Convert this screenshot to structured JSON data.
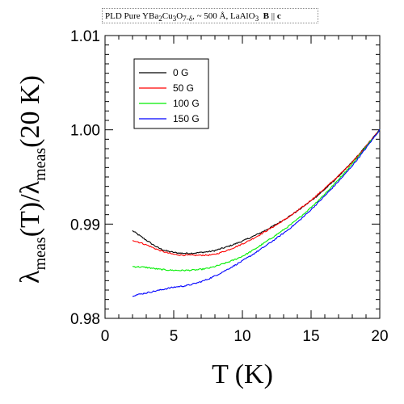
{
  "chart_data": {
    "type": "line",
    "title": "PLD Pure YBa2Cu3O7-δ,  ~ 500 Å,  LaAlO3  B || c",
    "title_parts": {
      "prefix": "PLD Pure YBa",
      "sub1": "2",
      "mid1": "Cu",
      "sub2": "3",
      "mid2": "O",
      "sub3": "7-δ",
      "mid3": ",  ~ 500 Å,  LaAlO",
      "sub4": "3",
      "field": "B",
      "parallel": "||",
      "axis": "c"
    },
    "xlabel": "T (K)",
    "ylabel": {
      "lambda1": "λ",
      "sub1": "meas",
      "mid": "(T)/",
      "lambda2": "λ",
      "sub2": "meas",
      "tail": "(20 K)"
    },
    "xlim": [
      0,
      20
    ],
    "ylim": [
      0.98,
      1.01
    ],
    "xticks": [
      0,
      5,
      10,
      15,
      20
    ],
    "xtick_labels": [
      "0",
      "5",
      "10",
      "15",
      "20"
    ],
    "yticks": [
      0.98,
      0.99,
      1.0,
      1.01
    ],
    "ytick_labels": [
      "0.98",
      "0.99",
      "1.00",
      "1.01"
    ],
    "grid": false,
    "legend_position": "top-left",
    "series": [
      {
        "name": "0 G",
        "color": "#000000",
        "x": [
          2,
          3,
          4,
          5,
          6,
          7,
          8,
          10,
          12,
          14,
          16,
          18,
          20
        ],
        "y": [
          0.9893,
          0.9883,
          0.9874,
          0.987,
          0.9869,
          0.987,
          0.9872,
          0.9882,
          0.9896,
          0.9914,
          0.9937,
          0.9966,
          1.0
        ]
      },
      {
        "name": "50 G",
        "color": "#ff0000",
        "x": [
          2,
          3,
          4,
          5,
          6,
          7,
          8,
          10,
          12,
          14,
          16,
          18,
          20
        ],
        "y": [
          0.9883,
          0.9878,
          0.9872,
          0.9868,
          0.9867,
          0.9867,
          0.9868,
          0.9879,
          0.9895,
          0.9914,
          0.9938,
          0.9966,
          1.0
        ]
      },
      {
        "name": "100 G",
        "color": "#00ee00",
        "x": [
          2,
          3,
          4,
          5,
          6,
          7,
          8,
          10,
          12,
          14,
          16,
          18,
          20
        ],
        "y": [
          0.9855,
          0.9854,
          0.9852,
          0.9851,
          0.9851,
          0.9852,
          0.9855,
          0.9866,
          0.9884,
          0.9905,
          0.9932,
          0.9964,
          1.0
        ]
      },
      {
        "name": "150 G",
        "color": "#0000ff",
        "x": [
          2,
          3,
          4,
          5,
          6,
          7,
          8,
          10,
          12,
          14,
          16,
          18,
          20
        ],
        "y": [
          0.9824,
          0.9827,
          0.983,
          0.9833,
          0.9835,
          0.9839,
          0.9845,
          0.9861,
          0.988,
          0.9902,
          0.993,
          0.9962,
          1.0
        ]
      }
    ]
  }
}
